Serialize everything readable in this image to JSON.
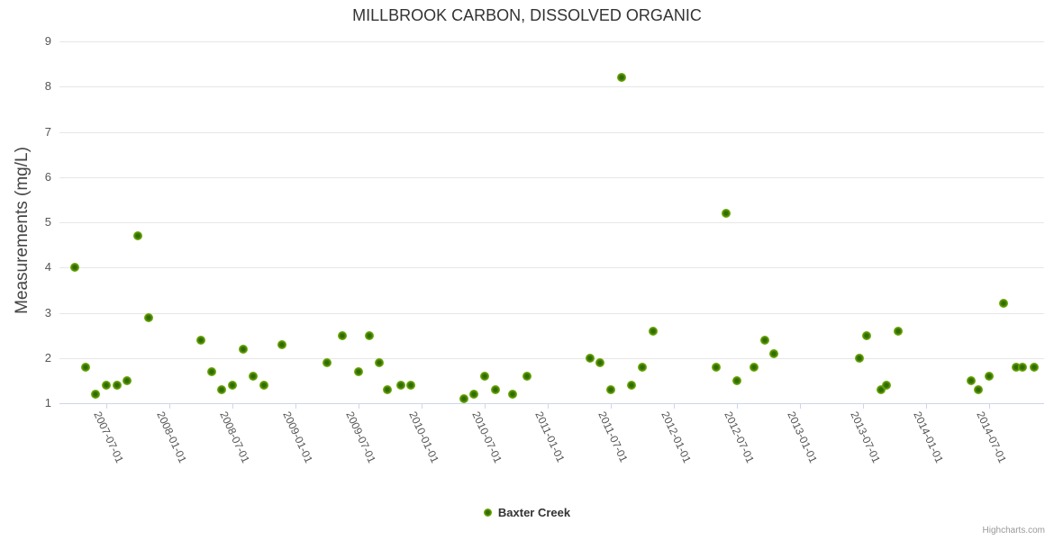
{
  "title": "MILLBROOK CARBON, DISSOLVED ORGANIC",
  "y_axis": {
    "title": "Measurements (mg/L)",
    "tick_labels": [
      "1",
      "2",
      "3",
      "4",
      "5",
      "6",
      "7",
      "8",
      "9"
    ]
  },
  "x_axis": {
    "tick_labels": [
      "2007-07-01",
      "2008-01-01",
      "2008-07-01",
      "2009-01-01",
      "2009-07-01",
      "2010-01-01",
      "2010-07-01",
      "2011-01-01",
      "2011-07-01",
      "2012-01-01",
      "2012-07-01",
      "2013-01-01",
      "2013-07-01",
      "2014-01-01",
      "2014-07-01"
    ]
  },
  "legend": {
    "items": [
      {
        "label": "Baxter Creek",
        "marker_color": "#7cb50a"
      }
    ]
  },
  "credits": {
    "label": "Highcharts.com"
  },
  "colors": {
    "marker_fill": "#7cb50a",
    "marker_center": "#2f6d04",
    "grid": "#e6e6e6",
    "axis_line": "#ccd6eb",
    "title": "#333333",
    "tick_label": "#555555",
    "axis_title": "#444444",
    "credits": "#999999"
  },
  "chart_data": {
    "type": "scatter",
    "title": "MILLBROOK CARBON, DISSOLVED ORGANIC",
    "xlabel": "",
    "ylabel": "Measurements (mg/L)",
    "ylim": [
      1,
      9
    ],
    "y_tick_interval": 1,
    "x_range": [
      "2007-02-15",
      "2014-12-05"
    ],
    "grid": "horizontal-only",
    "legend_position": "bottom-center",
    "series": [
      {
        "name": "Baxter Creek",
        "points": [
          [
            "2007-04-01",
            4.0
          ],
          [
            "2007-05-01",
            1.8
          ],
          [
            "2007-06-01",
            1.2
          ],
          [
            "2007-07-01",
            1.4
          ],
          [
            "2007-08-01",
            1.4
          ],
          [
            "2007-09-01",
            1.5
          ],
          [
            "2007-10-01",
            4.7
          ],
          [
            "2007-11-01",
            2.9
          ],
          [
            "2008-04-01",
            2.4
          ],
          [
            "2008-05-01",
            1.7
          ],
          [
            "2008-06-01",
            1.3
          ],
          [
            "2008-07-01",
            1.4
          ],
          [
            "2008-08-01",
            2.2
          ],
          [
            "2008-09-01",
            1.6
          ],
          [
            "2008-10-01",
            1.4
          ],
          [
            "2008-11-22",
            2.3
          ],
          [
            "2009-04-01",
            1.9
          ],
          [
            "2009-05-15",
            2.5
          ],
          [
            "2009-07-01",
            1.7
          ],
          [
            "2009-08-01",
            2.5
          ],
          [
            "2009-09-01",
            1.9
          ],
          [
            "2009-09-22",
            1.3
          ],
          [
            "2009-11-01",
            1.4
          ],
          [
            "2009-12-01",
            1.4
          ],
          [
            "2010-05-01",
            1.1
          ],
          [
            "2010-06-01",
            1.2
          ],
          [
            "2010-07-01",
            1.6
          ],
          [
            "2010-08-01",
            1.3
          ],
          [
            "2010-09-20",
            1.2
          ],
          [
            "2010-11-01",
            1.6
          ],
          [
            "2011-05-01",
            2.0
          ],
          [
            "2011-06-01",
            1.9
          ],
          [
            "2011-07-01",
            1.3
          ],
          [
            "2011-08-01",
            8.2
          ],
          [
            "2011-09-01",
            1.4
          ],
          [
            "2011-10-01",
            1.8
          ],
          [
            "2011-11-01",
            2.6
          ],
          [
            "2012-05-01",
            1.8
          ],
          [
            "2012-06-01",
            5.2
          ],
          [
            "2012-07-01",
            1.5
          ],
          [
            "2012-08-19",
            1.8
          ],
          [
            "2012-09-20",
            2.4
          ],
          [
            "2012-10-16",
            2.1
          ],
          [
            "2013-06-20",
            2.0
          ],
          [
            "2013-07-10",
            2.5
          ],
          [
            "2013-08-22",
            1.3
          ],
          [
            "2013-09-08",
            1.4
          ],
          [
            "2013-10-10",
            2.6
          ],
          [
            "2014-05-10",
            1.5
          ],
          [
            "2014-06-01",
            1.3
          ],
          [
            "2014-07-01",
            1.6
          ],
          [
            "2014-08-12",
            3.2
          ],
          [
            "2014-09-18",
            1.8
          ],
          [
            "2014-10-06",
            1.8
          ],
          [
            "2014-11-09",
            1.8
          ]
        ]
      }
    ]
  }
}
